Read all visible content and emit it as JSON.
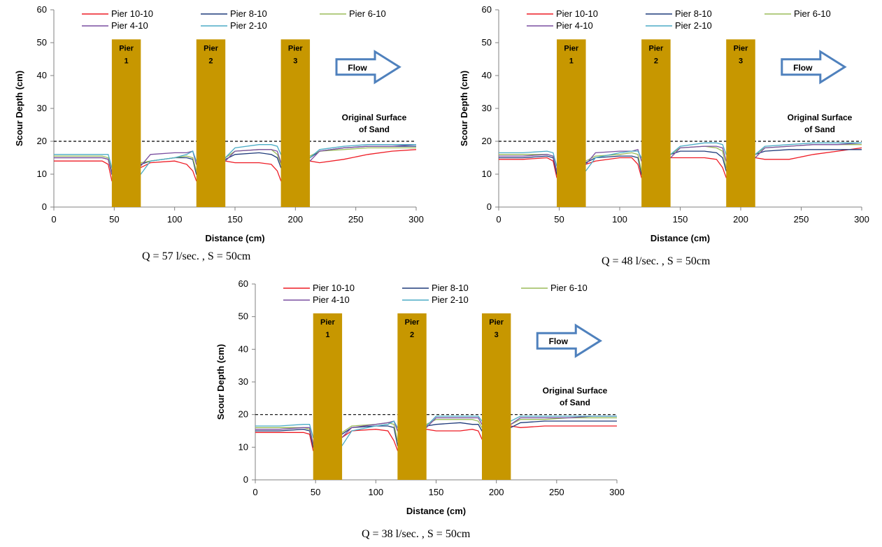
{
  "chart_data": [
    {
      "type": "line",
      "caption": "Q = 57 l/sec. , S = 50cm",
      "xlabel": "Distance (cm)",
      "ylabel": "Scour Depth (cm)",
      "xlim": [
        0,
        300
      ],
      "ylim": [
        0,
        60
      ],
      "xticks": [
        "0",
        "50",
        "100",
        "150",
        "200",
        "250",
        "300"
      ],
      "yticks": [
        "0",
        "10",
        "20",
        "30",
        "40",
        "50",
        "60"
      ],
      "grid": false,
      "legend_position": "top",
      "reference_line": {
        "y": 20,
        "label_lines": [
          "Original Surface",
          "of Sand"
        ]
      },
      "flow_label": "Flow",
      "piers": [
        {
          "label_lines": [
            "Pier",
            "1"
          ],
          "x_start": 48,
          "x_end": 72,
          "top": 51
        },
        {
          "label_lines": [
            "Pier",
            "2"
          ],
          "x_start": 118,
          "x_end": 142,
          "top": 51
        },
        {
          "label_lines": [
            "Pier",
            "3"
          ],
          "x_start": 188,
          "x_end": 212,
          "top": 51
        }
      ],
      "series": [
        {
          "name": "Pier 10-10",
          "color": "#ee1c25",
          "x": [
            0,
            20,
            40,
            45,
            48,
            72,
            80,
            100,
            110,
            115,
            118,
            142,
            150,
            170,
            180,
            185,
            188,
            212,
            220,
            240,
            260,
            280,
            300
          ],
          "y": [
            14,
            14,
            14,
            13,
            8,
            12,
            13.5,
            14,
            13,
            11,
            8,
            14,
            13.5,
            13.5,
            13,
            11,
            8,
            14,
            13.5,
            14.5,
            16,
            17,
            17.5
          ]
        },
        {
          "name": "Pier 8-10",
          "color": "#1f3b7a",
          "x": [
            0,
            20,
            40,
            45,
            48,
            72,
            80,
            100,
            110,
            115,
            118,
            142,
            150,
            170,
            180,
            185,
            188,
            212,
            220,
            240,
            260,
            280,
            300
          ],
          "y": [
            15,
            15,
            15,
            14.5,
            10,
            13,
            14,
            15,
            15,
            14.5,
            10,
            14.5,
            16,
            16.5,
            16,
            15,
            12,
            15,
            17,
            18,
            18.5,
            18.5,
            18.5
          ]
        },
        {
          "name": "Pier 6-10",
          "color": "#9bbb59",
          "x": [
            0,
            20,
            40,
            45,
            48,
            72,
            80,
            100,
            110,
            115,
            118,
            142,
            150,
            170,
            180,
            185,
            188,
            212,
            220,
            240,
            260,
            280,
            300
          ],
          "y": [
            15.5,
            15.5,
            15.5,
            15,
            11,
            13.5,
            14,
            15,
            15.5,
            15,
            11,
            15,
            17,
            17.5,
            17.5,
            16,
            13,
            15.5,
            17,
            17.5,
            18,
            18,
            18
          ]
        },
        {
          "name": "Pier 4-10",
          "color": "#7a4fa0",
          "x": [
            0,
            20,
            40,
            45,
            48,
            72,
            80,
            100,
            110,
            115,
            118,
            142,
            150,
            170,
            180,
            185,
            188,
            212,
            220,
            240,
            260,
            280,
            300
          ],
          "y": [
            15,
            15,
            15,
            14.5,
            10.5,
            12.5,
            16,
            16.5,
            16.5,
            17,
            13,
            14,
            17,
            17.5,
            17.5,
            17,
            13.5,
            14,
            17,
            18,
            18.5,
            18.5,
            19
          ]
        },
        {
          "name": "Pier 2-10",
          "color": "#4bacc6",
          "x": [
            0,
            20,
            40,
            45,
            48,
            72,
            80,
            100,
            110,
            115,
            118,
            142,
            150,
            170,
            180,
            185,
            188,
            212,
            220,
            240,
            260,
            280,
            300
          ],
          "y": [
            16,
            16,
            16,
            16,
            12,
            10,
            14,
            15,
            16,
            17,
            14,
            15,
            18,
            19,
            19,
            18.5,
            16,
            15,
            17.5,
            18.5,
            19,
            19,
            19
          ]
        }
      ]
    },
    {
      "type": "line",
      "caption": "Q = 48 l/sec. , S = 50cm",
      "xlabel": "Distance (cm)",
      "ylabel": "Scour Depth (cm)",
      "xlim": [
        0,
        300
      ],
      "ylim": [
        0,
        60
      ],
      "xticks": [
        "0",
        "50",
        "100",
        "150",
        "200",
        "250",
        "300"
      ],
      "yticks": [
        "0",
        "10",
        "20",
        "30",
        "40",
        "50",
        "60"
      ],
      "grid": false,
      "legend_position": "top",
      "reference_line": {
        "y": 20,
        "label_lines": [
          "Original Surface",
          "of Sand"
        ]
      },
      "flow_label": "Flow",
      "piers": [
        {
          "label_lines": [
            "Pier",
            "1"
          ],
          "x_start": 48,
          "x_end": 72,
          "top": 51
        },
        {
          "label_lines": [
            "Pier",
            "2"
          ],
          "x_start": 118,
          "x_end": 142,
          "top": 51
        },
        {
          "label_lines": [
            "Pier",
            "3"
          ],
          "x_start": 188,
          "x_end": 212,
          "top": 51
        }
      ],
      "series": [
        {
          "name": "Pier 10-10",
          "color": "#ee1c25",
          "x": [
            0,
            20,
            40,
            45,
            48,
            72,
            80,
            100,
            110,
            115,
            118,
            142,
            150,
            170,
            180,
            185,
            188,
            212,
            220,
            240,
            260,
            280,
            300
          ],
          "y": [
            14.5,
            14.5,
            15,
            14,
            9,
            13,
            14,
            15,
            15,
            13,
            9,
            15,
            15,
            15,
            14.5,
            12,
            9,
            15,
            14.5,
            14.5,
            16,
            17,
            18
          ]
        },
        {
          "name": "Pier 8-10",
          "color": "#1f3b7a",
          "x": [
            0,
            20,
            40,
            45,
            48,
            72,
            80,
            100,
            110,
            115,
            118,
            142,
            150,
            170,
            180,
            185,
            188,
            212,
            220,
            240,
            260,
            280,
            300
          ],
          "y": [
            15,
            15,
            15.5,
            15,
            10,
            13.5,
            15,
            15.5,
            15.5,
            15,
            10,
            16,
            17,
            17,
            16.5,
            15,
            11,
            16,
            17,
            17.5,
            17.5,
            17.5,
            17.5
          ]
        },
        {
          "name": "Pier 6-10",
          "color": "#9bbb59",
          "x": [
            0,
            20,
            40,
            45,
            48,
            72,
            80,
            100,
            110,
            115,
            118,
            142,
            150,
            170,
            180,
            185,
            188,
            212,
            220,
            240,
            260,
            280,
            300
          ],
          "y": [
            16,
            16,
            16,
            15.5,
            11,
            14,
            15.5,
            16,
            16.5,
            16,
            11,
            16,
            18,
            18.5,
            18,
            17,
            12,
            16,
            18,
            18.5,
            19,
            19,
            19
          ]
        },
        {
          "name": "Pier 4-10",
          "color": "#7a4fa0",
          "x": [
            0,
            20,
            40,
            45,
            48,
            72,
            80,
            100,
            110,
            115,
            118,
            142,
            150,
            170,
            180,
            185,
            188,
            212,
            220,
            240,
            260,
            280,
            300
          ],
          "y": [
            15.5,
            15.5,
            16,
            15.5,
            11,
            13,
            16.5,
            17,
            17,
            17.5,
            14,
            15,
            18,
            18.5,
            18.5,
            18,
            14,
            15,
            18,
            18.5,
            19,
            19,
            19.5
          ]
        },
        {
          "name": "Pier 2-10",
          "color": "#4bacc6",
          "x": [
            0,
            20,
            40,
            45,
            48,
            72,
            80,
            100,
            110,
            115,
            118,
            142,
            150,
            170,
            180,
            185,
            188,
            212,
            220,
            240,
            260,
            280,
            300
          ],
          "y": [
            16.5,
            16.5,
            17,
            16.5,
            12.5,
            11,
            15,
            16.5,
            17,
            17,
            15,
            16,
            18.5,
            19.5,
            19.5,
            19,
            16,
            16,
            18.5,
            19,
            19.5,
            19.5,
            19.5
          ]
        }
      ]
    },
    {
      "type": "line",
      "caption": "Q = 38 l/sec. , S = 50cm",
      "xlabel": "Distance (cm)",
      "ylabel": "Scour Depth (cm)",
      "xlim": [
        0,
        300
      ],
      "ylim": [
        0,
        60
      ],
      "xticks": [
        "0",
        "50",
        "100",
        "150",
        "200",
        "250",
        "300"
      ],
      "yticks": [
        "0",
        "10",
        "20",
        "30",
        "40",
        "50",
        "60"
      ],
      "grid": false,
      "legend_position": "top",
      "reference_line": {
        "y": 20,
        "label_lines": [
          "Original Surface",
          "of Sand"
        ]
      },
      "flow_label": "Flow",
      "piers": [
        {
          "label_lines": [
            "Pier",
            "1"
          ],
          "x_start": 48,
          "x_end": 72,
          "top": 51
        },
        {
          "label_lines": [
            "Pier",
            "2"
          ],
          "x_start": 118,
          "x_end": 142,
          "top": 51
        },
        {
          "label_lines": [
            "Pier",
            "3"
          ],
          "x_start": 188,
          "x_end": 212,
          "top": 51
        }
      ],
      "series": [
        {
          "name": "Pier 10-10",
          "color": "#ee1c25",
          "x": [
            0,
            20,
            40,
            45,
            48,
            72,
            80,
            100,
            110,
            115,
            118,
            142,
            150,
            170,
            180,
            185,
            188,
            212,
            220,
            240,
            260,
            280,
            300
          ],
          "y": [
            14.5,
            14.5,
            14.5,
            14,
            9,
            13,
            15,
            15.5,
            15,
            12,
            9,
            15.5,
            15,
            15,
            15.5,
            15,
            12.5,
            16.5,
            16,
            16.5,
            16.5,
            16.5,
            16.5
          ]
        },
        {
          "name": "Pier 8-10",
          "color": "#1f3b7a",
          "x": [
            0,
            20,
            40,
            45,
            48,
            72,
            80,
            100,
            110,
            115,
            118,
            142,
            150,
            170,
            180,
            185,
            188,
            212,
            220,
            240,
            260,
            280,
            300
          ],
          "y": [
            15,
            15,
            15.5,
            15,
            10,
            14,
            16,
            16.5,
            16.5,
            16,
            10.5,
            16.5,
            17,
            17.5,
            17,
            17,
            15,
            16,
            17.5,
            18,
            18,
            18,
            18
          ]
        },
        {
          "name": "Pier 6-10",
          "color": "#9bbb59",
          "x": [
            0,
            20,
            40,
            45,
            48,
            72,
            80,
            100,
            110,
            115,
            118,
            142,
            150,
            170,
            180,
            185,
            188,
            212,
            220,
            240,
            260,
            280,
            300
          ],
          "y": [
            16,
            16,
            16,
            15.5,
            11,
            14.5,
            16.5,
            17,
            17.5,
            17,
            12,
            17,
            18.5,
            18.5,
            18.5,
            18,
            16,
            17,
            18.5,
            18.5,
            19,
            19,
            19
          ]
        },
        {
          "name": "Pier 4-10",
          "color": "#7a4fa0",
          "x": [
            0,
            20,
            40,
            45,
            48,
            72,
            80,
            100,
            110,
            115,
            118,
            142,
            150,
            170,
            180,
            185,
            188,
            212,
            220,
            240,
            260,
            280,
            300
          ],
          "y": [
            15.5,
            15.5,
            16,
            16,
            11,
            13,
            16,
            17,
            17.5,
            18,
            15,
            16,
            19,
            19,
            19,
            19,
            17,
            17,
            19,
            19,
            19,
            19.5,
            19.5
          ]
        },
        {
          "name": "Pier 2-10",
          "color": "#4bacc6",
          "x": [
            0,
            20,
            40,
            45,
            48,
            72,
            80,
            100,
            110,
            115,
            118,
            142,
            150,
            170,
            180,
            185,
            188,
            212,
            220,
            240,
            260,
            280,
            300
          ],
          "y": [
            16.5,
            16.5,
            17,
            17,
            13,
            10.5,
            15,
            16.5,
            17,
            18,
            16,
            16.5,
            19.5,
            19.5,
            19.5,
            19.5,
            18,
            18,
            19.5,
            19.5,
            19.5,
            19.5,
            19.5
          ]
        }
      ]
    }
  ]
}
